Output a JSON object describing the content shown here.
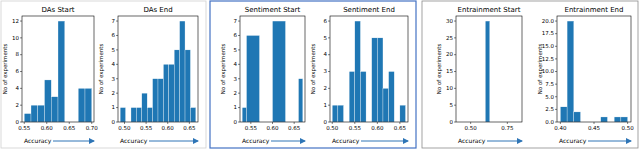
{
  "chart_data": [
    {
      "type": "histogram",
      "title": "DAs Start",
      "x_label": "Accuracy",
      "y_label": "No of experiments",
      "color": "#1f77b4",
      "bins": [
        0.55,
        0.565,
        0.58,
        0.595,
        0.61,
        0.625,
        0.64,
        0.655,
        0.67,
        0.685,
        0.7
      ],
      "values": [
        1,
        2,
        2,
        5,
        3,
        12,
        0,
        0,
        4,
        4
      ],
      "xlim": [
        0.545,
        0.705
      ],
      "xticks": [
        0.55,
        {
          "value": 0.6,
          "label": "0.60"
        },
        0.65,
        {
          "value": 0.7,
          "label": "0.70"
        }
      ],
      "ylim": [
        0,
        12.6
      ],
      "yticks": [
        0,
        2,
        4,
        6,
        8,
        10,
        12
      ]
    },
    {
      "type": "histogram",
      "title": "DAs End",
      "x_label": "Accuracy",
      "y_label": "No of experiments",
      "color": "#1f77b4",
      "bins": [
        0.49,
        0.5025,
        0.515,
        0.5275,
        0.54,
        0.5525,
        0.565,
        0.5775,
        0.59,
        0.6025,
        0.615,
        0.6275,
        0.64,
        0.6525,
        0.665
      ],
      "values": [
        1,
        0,
        1,
        1,
        2,
        1,
        3,
        3,
        4,
        4,
        5,
        7,
        5,
        1
      ],
      "xlim": [
        0.485,
        0.67
      ],
      "xticks": [
        {
          "value": 0.5,
          "label": "0.50"
        },
        0.55,
        {
          "value": 0.6,
          "label": "0.60"
        },
        0.65
      ],
      "ylim": [
        0,
        7.35
      ],
      "yticks": [
        0,
        1,
        2,
        3,
        4,
        5,
        6,
        7
      ]
    },
    {
      "type": "histogram",
      "title": "Sentiment Start",
      "x_label": "Accuracy",
      "y_label": "No of experiments",
      "color": "#1f77b4",
      "bins": [
        0.53,
        0.54,
        0.57,
        0.6,
        0.63,
        0.66,
        0.67
      ],
      "values": [
        1,
        6,
        0,
        7,
        0,
        3
      ],
      "xlim": [
        0.525,
        0.675
      ],
      "xticks": [
        0.55,
        {
          "value": 0.6,
          "label": "0.60"
        },
        0.65
      ],
      "ylim": [
        0,
        7.35
      ],
      "yticks": [
        0,
        1,
        2,
        3,
        4,
        5,
        6,
        7
      ]
    },
    {
      "type": "histogram",
      "title": "Sentiment End",
      "x_label": "Accuracy",
      "y_label": "No of experiments",
      "color": "#1f77b4",
      "bins": [
        0.5,
        0.5125,
        0.525,
        0.5375,
        0.55,
        0.5625,
        0.575,
        0.5875,
        0.6,
        0.6125,
        0.625,
        0.6375,
        0.65,
        0.6625
      ],
      "values": [
        1,
        1,
        0,
        3,
        6,
        3,
        0,
        5,
        5,
        2,
        3,
        0,
        1
      ],
      "xlim": [
        0.495,
        0.668
      ],
      "xticks": [
        {
          "value": 0.5,
          "label": "0.50"
        },
        0.55,
        {
          "value": 0.6,
          "label": "0.60"
        },
        0.65
      ],
      "ylim": [
        0,
        6.3
      ],
      "yticks": [
        0,
        1,
        2,
        3,
        4,
        5,
        6
      ]
    },
    {
      "type": "histogram",
      "title": "Entrainment Start",
      "x_label": "Accuracy",
      "y_label": "No of experiments",
      "color": "#1f77b4",
      "bins": [
        0.6,
        0.63
      ],
      "values": [
        30
      ],
      "xlim": [
        0.4,
        0.85
      ],
      "xticks": [
        {
          "value": 0.5,
          "label": "0.50"
        },
        0.75
      ],
      "ylim": [
        0,
        31.5
      ],
      "yticks": [
        0,
        5,
        10,
        15,
        20,
        25,
        30
      ]
    },
    {
      "type": "histogram",
      "title": "Entrainment End",
      "x_label": "Accuracy",
      "y_label": "No of experiments",
      "color": "#1f77b4",
      "bins": [
        0.4,
        0.41,
        0.42,
        0.43,
        0.44,
        0.45,
        0.46,
        0.47,
        0.48,
        0.49,
        0.5
      ],
      "values": [
        3,
        20,
        2,
        0,
        0,
        0,
        1,
        0,
        1,
        1
      ],
      "xlim": [
        0.395,
        0.505
      ],
      "xticks": [
        {
          "value": 0.4,
          "label": "0.40"
        },
        0.45,
        {
          "value": 0.5,
          "label": "0.50"
        }
      ],
      "ylim": [
        0,
        21
      ],
      "yticks": [
        {
          "value": 0,
          "label": "0.0"
        },
        2.5,
        {
          "value": 5,
          "label": "5.0"
        },
        7.5,
        {
          "value": 10,
          "label": "10.0"
        },
        12.5,
        {
          "value": 15,
          "label": "15.0"
        },
        17.5,
        {
          "value": 20,
          "label": "20.0"
        }
      ]
    }
  ]
}
